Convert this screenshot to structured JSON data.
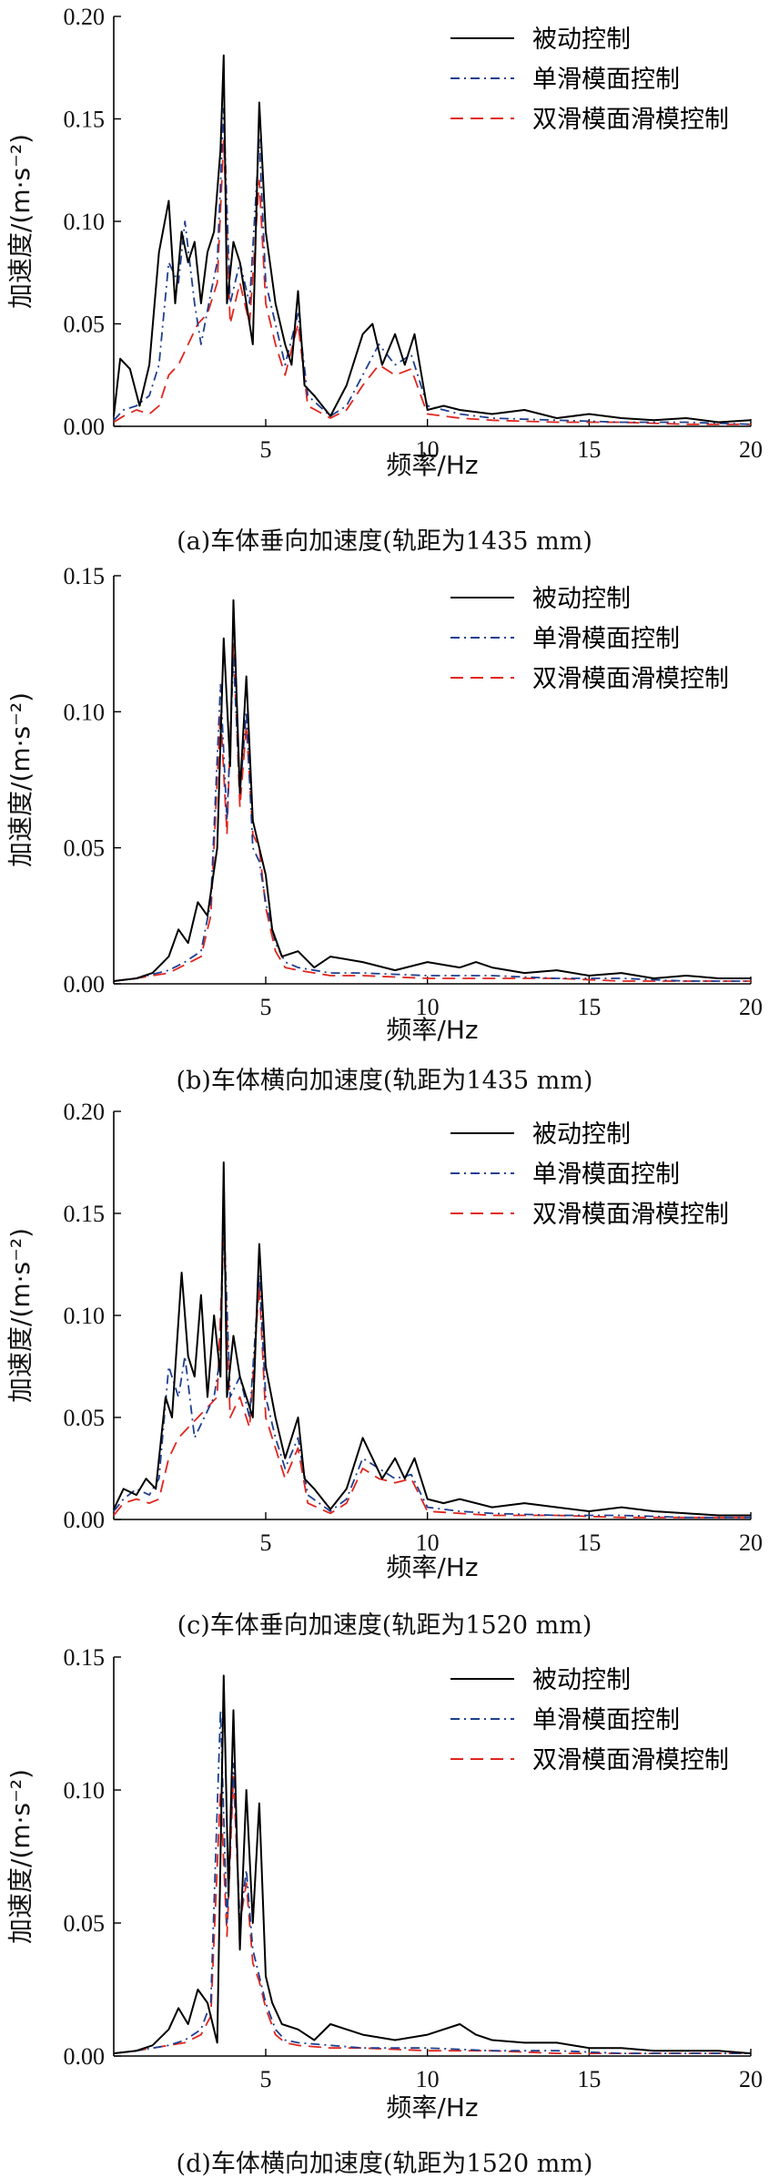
{
  "colors": {
    "passive": "#000000",
    "single": "#1f3f8f",
    "double": "#e0261e"
  },
  "chart_data": [
    {
      "id": "a",
      "type": "line",
      "caption": "(a)车体垂向加速度(轨距为1435 mm)",
      "xlabel": "频率/Hz",
      "ylabel": "加速度/(m·s⁻²)",
      "xlim": [
        0.3,
        20
      ],
      "ylim": [
        0,
        0.2
      ],
      "xticks": [
        5,
        10,
        15,
        20
      ],
      "yticks": [
        0.0,
        0.05,
        0.1,
        0.15,
        0.2
      ],
      "ytick_labels": [
        "0.00",
        "0.05",
        "0.10",
        "0.15",
        "0.20"
      ],
      "legend_position": "top-right",
      "series": [
        {
          "name": "被动控制",
          "style": "solid",
          "color": "#000000",
          "x": [
            0.3,
            0.5,
            0.8,
            1.1,
            1.4,
            1.7,
            2.0,
            2.2,
            2.4,
            2.6,
            2.8,
            3.0,
            3.2,
            3.4,
            3.6,
            3.7,
            3.8,
            4.0,
            4.2,
            4.4,
            4.6,
            4.8,
            5.0,
            5.3,
            5.6,
            5.8,
            6.0,
            6.2,
            6.5,
            7.0,
            7.5,
            8.0,
            8.3,
            8.6,
            9.0,
            9.3,
            9.6,
            10.0,
            10.5,
            11.0,
            12.0,
            13.0,
            14.0,
            15.0,
            16.0,
            17.0,
            18.0,
            19.0,
            20.0
          ],
          "y": [
            0.005,
            0.033,
            0.028,
            0.01,
            0.03,
            0.085,
            0.11,
            0.06,
            0.095,
            0.08,
            0.09,
            0.06,
            0.085,
            0.095,
            0.135,
            0.181,
            0.06,
            0.09,
            0.08,
            0.06,
            0.04,
            0.158,
            0.095,
            0.06,
            0.04,
            0.03,
            0.066,
            0.02,
            0.015,
            0.005,
            0.02,
            0.045,
            0.05,
            0.03,
            0.045,
            0.03,
            0.045,
            0.008,
            0.01,
            0.008,
            0.006,
            0.008,
            0.004,
            0.006,
            0.004,
            0.003,
            0.004,
            0.002,
            0.003
          ]
        },
        {
          "name": "单滑模面控制",
          "style": "dashdot",
          "color": "#1f3f8f",
          "x": [
            0.3,
            0.6,
            1.0,
            1.4,
            1.7,
            2.0,
            2.3,
            2.5,
            2.8,
            3.0,
            3.3,
            3.5,
            3.7,
            3.9,
            4.2,
            4.5,
            4.8,
            5.0,
            5.3,
            5.6,
            6.0,
            6.3,
            7.0,
            7.5,
            8.0,
            8.5,
            9.0,
            9.5,
            10.0,
            11.0,
            12.0,
            14.0,
            16.0,
            18.0,
            20.0
          ],
          "y": [
            0.003,
            0.008,
            0.01,
            0.015,
            0.03,
            0.08,
            0.07,
            0.1,
            0.06,
            0.04,
            0.065,
            0.08,
            0.155,
            0.06,
            0.08,
            0.06,
            0.14,
            0.07,
            0.05,
            0.03,
            0.055,
            0.015,
            0.005,
            0.01,
            0.025,
            0.04,
            0.03,
            0.035,
            0.01,
            0.006,
            0.004,
            0.003,
            0.002,
            0.002,
            0.001
          ]
        },
        {
          "name": "双滑模面滑模控制",
          "style": "dash",
          "color": "#e0261e",
          "x": [
            0.3,
            0.6,
            1.0,
            1.4,
            1.7,
            2.0,
            2.3,
            2.6,
            2.9,
            3.2,
            3.5,
            3.7,
            3.9,
            4.2,
            4.5,
            4.8,
            5.0,
            5.3,
            5.6,
            6.0,
            6.3,
            7.0,
            7.5,
            8.0,
            8.5,
            9.0,
            9.5,
            10.0,
            11.0,
            12.0,
            14.0,
            16.0,
            18.0,
            20.0
          ],
          "y": [
            0.002,
            0.005,
            0.008,
            0.006,
            0.01,
            0.025,
            0.03,
            0.04,
            0.05,
            0.055,
            0.07,
            0.14,
            0.05,
            0.07,
            0.05,
            0.12,
            0.06,
            0.04,
            0.025,
            0.05,
            0.01,
            0.004,
            0.008,
            0.02,
            0.03,
            0.025,
            0.028,
            0.006,
            0.004,
            0.003,
            0.002,
            0.002,
            0.001,
            0.001
          ]
        }
      ]
    },
    {
      "id": "b",
      "type": "line",
      "caption": "(b)车体横向加速度(轨距为1435 mm)",
      "xlabel": "频率/Hz",
      "ylabel": "加速度/(m·s⁻²)",
      "xlim": [
        0.3,
        20
      ],
      "ylim": [
        0,
        0.15
      ],
      "xticks": [
        5,
        10,
        15,
        20
      ],
      "yticks": [
        0.0,
        0.05,
        0.1,
        0.15
      ],
      "ytick_labels": [
        "0.00",
        "0.05",
        "0.10",
        "0.15"
      ],
      "legend_position": "top-right",
      "series": [
        {
          "name": "被动控制",
          "style": "solid",
          "color": "#000000",
          "x": [
            0.3,
            1.0,
            1.5,
            2.0,
            2.3,
            2.6,
            2.9,
            3.2,
            3.5,
            3.7,
            3.9,
            4.0,
            4.2,
            4.4,
            4.6,
            4.8,
            5.0,
            5.2,
            5.5,
            6.0,
            6.5,
            7.0,
            8.0,
            9.0,
            10.0,
            11.0,
            11.5,
            12.0,
            13.0,
            14.0,
            15.0,
            16.0,
            17.0,
            18.0,
            19.0,
            20.0
          ],
          "y": [
            0.001,
            0.002,
            0.004,
            0.01,
            0.02,
            0.015,
            0.03,
            0.025,
            0.05,
            0.127,
            0.08,
            0.141,
            0.07,
            0.113,
            0.06,
            0.05,
            0.04,
            0.02,
            0.01,
            0.012,
            0.006,
            0.01,
            0.008,
            0.005,
            0.008,
            0.006,
            0.008,
            0.006,
            0.004,
            0.005,
            0.003,
            0.004,
            0.002,
            0.003,
            0.002,
            0.002
          ]
        },
        {
          "name": "单滑模面控制",
          "style": "dashdot",
          "color": "#1f3f8f",
          "x": [
            0.3,
            1.0,
            2.0,
            2.5,
            3.0,
            3.3,
            3.6,
            3.8,
            4.0,
            4.2,
            4.4,
            4.6,
            4.8,
            5.0,
            5.3,
            5.6,
            6.0,
            7.0,
            8.0,
            10.0,
            12.0,
            14.0,
            16.0,
            18.0,
            20.0
          ],
          "y": [
            0.001,
            0.002,
            0.005,
            0.008,
            0.012,
            0.03,
            0.11,
            0.06,
            0.12,
            0.07,
            0.1,
            0.05,
            0.045,
            0.03,
            0.015,
            0.008,
            0.006,
            0.004,
            0.004,
            0.003,
            0.003,
            0.002,
            0.002,
            0.001,
            0.001
          ]
        },
        {
          "name": "双滑模面滑模控制",
          "style": "dash",
          "color": "#e0261e",
          "x": [
            0.3,
            1.0,
            2.0,
            2.5,
            3.0,
            3.3,
            3.6,
            3.8,
            4.0,
            4.2,
            4.4,
            4.6,
            4.8,
            5.0,
            5.3,
            5.6,
            6.0,
            7.0,
            8.0,
            10.0,
            12.0,
            14.0,
            16.0,
            18.0,
            20.0
          ],
          "y": [
            0.001,
            0.002,
            0.004,
            0.007,
            0.01,
            0.025,
            0.1,
            0.055,
            0.125,
            0.065,
            0.095,
            0.055,
            0.05,
            0.028,
            0.012,
            0.006,
            0.005,
            0.003,
            0.003,
            0.002,
            0.002,
            0.002,
            0.001,
            0.001,
            0.001
          ]
        }
      ]
    },
    {
      "id": "c",
      "type": "line",
      "caption": "(c)车体垂向加速度(轨距为1520 mm)",
      "xlabel": "频率/Hz",
      "ylabel": "加速度/(m·s⁻²)",
      "xlim": [
        0.3,
        20
      ],
      "ylim": [
        0,
        0.2
      ],
      "xticks": [
        5,
        10,
        15,
        20
      ],
      "yticks": [
        0.0,
        0.05,
        0.1,
        0.15,
        0.2
      ],
      "ytick_labels": [
        "0.00",
        "0.05",
        "0.10",
        "0.15",
        "0.20"
      ],
      "legend_position": "top-right",
      "series": [
        {
          "name": "被动控制",
          "style": "solid",
          "color": "#000000",
          "x": [
            0.3,
            0.6,
            1.0,
            1.3,
            1.6,
            1.9,
            2.1,
            2.4,
            2.6,
            2.8,
            3.0,
            3.2,
            3.4,
            3.6,
            3.7,
            3.8,
            4.0,
            4.2,
            4.4,
            4.6,
            4.8,
            5.0,
            5.3,
            5.6,
            5.8,
            6.0,
            6.2,
            6.5,
            7.0,
            7.5,
            8.0,
            8.3,
            8.6,
            9.0,
            9.3,
            9.6,
            10.0,
            10.5,
            11.0,
            12.0,
            13.0,
            14.0,
            15.0,
            16.0,
            17.0,
            18.0,
            19.0,
            20.0
          ],
          "y": [
            0.005,
            0.015,
            0.012,
            0.02,
            0.015,
            0.06,
            0.05,
            0.121,
            0.08,
            0.07,
            0.11,
            0.06,
            0.1,
            0.07,
            0.175,
            0.06,
            0.09,
            0.07,
            0.06,
            0.05,
            0.135,
            0.075,
            0.05,
            0.03,
            0.04,
            0.05,
            0.02,
            0.015,
            0.005,
            0.015,
            0.04,
            0.03,
            0.02,
            0.03,
            0.02,
            0.03,
            0.01,
            0.008,
            0.01,
            0.006,
            0.008,
            0.006,
            0.004,
            0.006,
            0.004,
            0.003,
            0.002,
            0.002
          ]
        },
        {
          "name": "单滑模面控制",
          "style": "dashdot",
          "color": "#1f3f8f",
          "x": [
            0.3,
            0.6,
            1.0,
            1.4,
            1.7,
            2.0,
            2.3,
            2.5,
            2.8,
            3.1,
            3.4,
            3.6,
            3.7,
            3.9,
            4.2,
            4.5,
            4.8,
            5.0,
            5.3,
            5.6,
            6.0,
            6.3,
            7.0,
            7.5,
            8.0,
            8.5,
            9.0,
            9.5,
            10.0,
            11.0,
            12.0,
            14.0,
            16.0,
            18.0,
            20.0
          ],
          "y": [
            0.004,
            0.01,
            0.015,
            0.012,
            0.02,
            0.075,
            0.06,
            0.08,
            0.04,
            0.05,
            0.06,
            0.08,
            0.15,
            0.06,
            0.07,
            0.05,
            0.12,
            0.06,
            0.04,
            0.025,
            0.04,
            0.012,
            0.004,
            0.01,
            0.03,
            0.025,
            0.02,
            0.022,
            0.006,
            0.004,
            0.003,
            0.002,
            0.002,
            0.001,
            0.001
          ]
        },
        {
          "name": "双滑模面滑模控制",
          "style": "dash",
          "color": "#e0261e",
          "x": [
            0.3,
            0.6,
            1.0,
            1.4,
            1.7,
            2.0,
            2.3,
            2.6,
            2.9,
            3.2,
            3.5,
            3.7,
            3.9,
            4.2,
            4.5,
            4.8,
            5.0,
            5.3,
            5.6,
            6.0,
            6.3,
            7.0,
            7.5,
            8.0,
            8.5,
            9.0,
            9.5,
            10.0,
            11.0,
            12.0,
            14.0,
            16.0,
            18.0,
            20.0
          ],
          "y": [
            0.002,
            0.008,
            0.01,
            0.008,
            0.01,
            0.03,
            0.04,
            0.045,
            0.05,
            0.055,
            0.06,
            0.14,
            0.05,
            0.06,
            0.045,
            0.115,
            0.05,
            0.035,
            0.02,
            0.035,
            0.008,
            0.003,
            0.008,
            0.025,
            0.02,
            0.018,
            0.02,
            0.004,
            0.003,
            0.002,
            0.002,
            0.001,
            0.001,
            0.001
          ]
        }
      ]
    },
    {
      "id": "d",
      "type": "line",
      "caption": "(d)车体横向加速度(轨距为1520 mm)",
      "xlabel": "频率/Hz",
      "ylabel": "加速度/(m·s⁻²)",
      "xlim": [
        0.3,
        20
      ],
      "ylim": [
        0,
        0.15
      ],
      "xticks": [
        5,
        10,
        15,
        20
      ],
      "yticks": [
        0.0,
        0.05,
        0.1,
        0.15
      ],
      "ytick_labels": [
        "0.00",
        "0.05",
        "0.10",
        "0.15"
      ],
      "legend_position": "top-right",
      "series": [
        {
          "name": "被动控制",
          "style": "solid",
          "color": "#000000",
          "x": [
            0.3,
            1.0,
            1.5,
            2.0,
            2.3,
            2.6,
            2.9,
            3.2,
            3.5,
            3.7,
            3.85,
            4.0,
            4.2,
            4.4,
            4.6,
            4.8,
            5.0,
            5.2,
            5.5,
            6.0,
            6.5,
            7.0,
            8.0,
            9.0,
            10.0,
            11.0,
            11.5,
            12.0,
            13.0,
            14.0,
            15.0,
            16.0,
            17.0,
            18.0,
            19.0,
            20.0
          ],
          "y": [
            0.001,
            0.002,
            0.004,
            0.01,
            0.018,
            0.012,
            0.025,
            0.02,
            0.005,
            0.143,
            0.06,
            0.13,
            0.04,
            0.1,
            0.05,
            0.095,
            0.03,
            0.02,
            0.012,
            0.01,
            0.006,
            0.012,
            0.008,
            0.006,
            0.008,
            0.012,
            0.008,
            0.006,
            0.005,
            0.005,
            0.003,
            0.003,
            0.002,
            0.002,
            0.002,
            0.001
          ]
        },
        {
          "name": "单滑模面控制",
          "style": "dashdot",
          "color": "#1f3f8f",
          "x": [
            0.3,
            1.0,
            2.0,
            2.5,
            3.0,
            3.3,
            3.6,
            3.8,
            4.0,
            4.2,
            4.4,
            4.6,
            4.8,
            5.0,
            5.3,
            5.6,
            6.0,
            7.0,
            8.0,
            10.0,
            12.0,
            14.0,
            16.0,
            18.0,
            20.0
          ],
          "y": [
            0.001,
            0.002,
            0.004,
            0.006,
            0.01,
            0.02,
            0.13,
            0.05,
            0.11,
            0.05,
            0.07,
            0.04,
            0.03,
            0.02,
            0.01,
            0.006,
            0.005,
            0.004,
            0.003,
            0.003,
            0.002,
            0.002,
            0.001,
            0.001,
            0.001
          ]
        },
        {
          "name": "双滑模面滑模控制",
          "style": "dash",
          "color": "#e0261e",
          "x": [
            0.3,
            1.0,
            2.0,
            2.5,
            3.0,
            3.3,
            3.6,
            3.8,
            4.0,
            4.2,
            4.4,
            4.6,
            4.8,
            5.0,
            5.3,
            5.6,
            6.0,
            7.0,
            8.0,
            10.0,
            12.0,
            14.0,
            16.0,
            18.0,
            20.0
          ],
          "y": [
            0.001,
            0.002,
            0.004,
            0.005,
            0.008,
            0.015,
            0.1,
            0.045,
            0.105,
            0.05,
            0.065,
            0.035,
            0.028,
            0.018,
            0.008,
            0.005,
            0.004,
            0.003,
            0.003,
            0.002,
            0.002,
            0.001,
            0.001,
            0.001,
            0.001
          ]
        }
      ]
    }
  ]
}
